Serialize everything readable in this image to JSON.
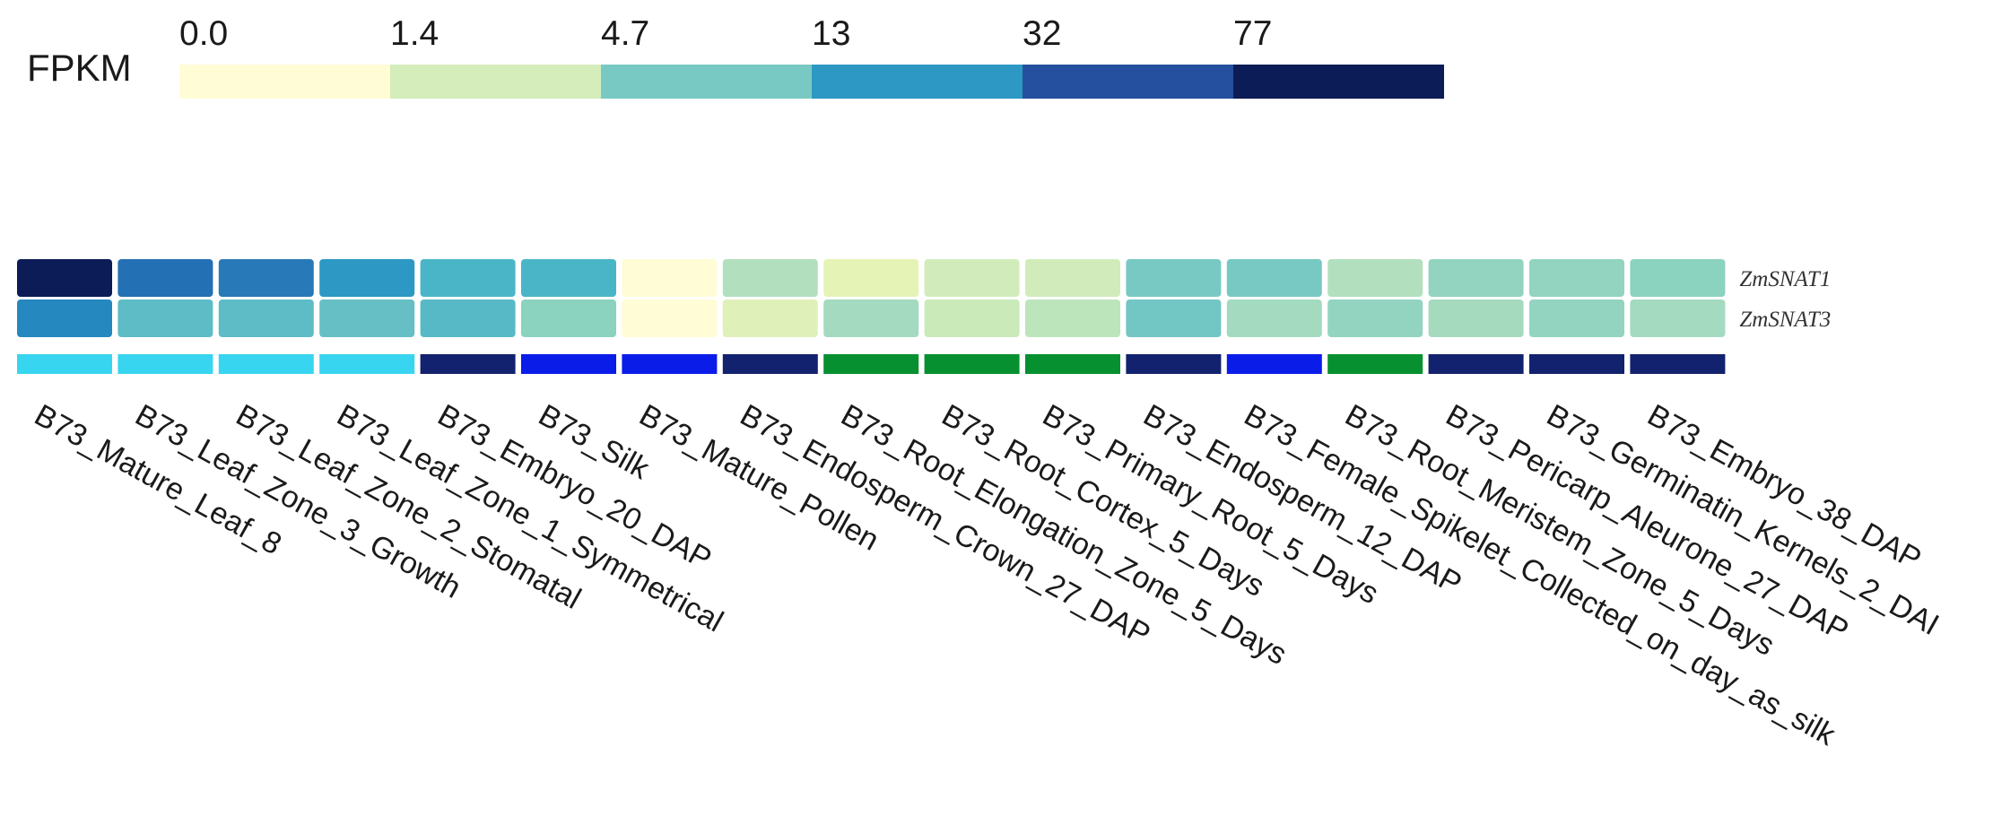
{
  "chart_data": {
    "type": "heatmap",
    "title": "",
    "legend": {
      "title": "FPKM",
      "breaks": [
        "0.0",
        "1.4",
        "4.7",
        "13",
        "32",
        "77"
      ],
      "colors": [
        "#fffcd6",
        "#d5ecbb",
        "#78c9c3",
        "#2d98c3",
        "#2550a0",
        "#0c1c56"
      ]
    },
    "genes": [
      "ZmSNAT1",
      "ZmSNAT3"
    ],
    "samples": [
      "B73_Mature_Leaf_8",
      "B73_Leaf_Zone_3_Growth",
      "B73_Leaf_Zone_2_Stomatal",
      "B73_Leaf_Zone_1_Symmetrical",
      "B73_Embryo_20_DAP",
      "B73_Silk",
      "B73_Mature_Pollen",
      "B73_Endosperm_Crown_27_DAP",
      "B73_Root_Elongation_Zone_5_Days",
      "B73_Root_Cortex_5_Days",
      "B73_Primary_Root_5_Days",
      "B73_Endosperm_12_DAP",
      "B73_Female_Spikelet_Collected_on_day_as_silk",
      "B73_Root_Meristem_Zone_5_Days",
      "B73_Pericarp_Aleurone_27_DAP",
      "B73_Germinatin_Kernels_2_DAI",
      "B73_Embryo_38_DAP"
    ],
    "cell_colors": [
      [
        "#0c1c56",
        "#2370b4",
        "#2879b8",
        "#2d98c3",
        "#4ab5c6",
        "#4ab5c6",
        "#fffcd6",
        "#b2e0be",
        "#e5f3b6",
        "#d1ecba",
        "#d1ecba",
        "#78c9c3",
        "#78c9c3",
        "#b2e0be",
        "#92d4c0",
        "#92d4c0",
        "#8bd2bf"
      ],
      [
        "#2588bf",
        "#5dbcc6",
        "#5dbcc6",
        "#66bfc4",
        "#58b9c6",
        "#8bd2bf",
        "#fffcd6",
        "#dff1b8",
        "#a3dac0",
        "#caeaba",
        "#bde5bc",
        "#72c6c4",
        "#a3dac0",
        "#92d4c0",
        "#a5dabf",
        "#92d4c0",
        "#a3dac0"
      ]
    ],
    "annotation_colors": [
      "#38d5f0",
      "#38d5f0",
      "#38d5f0",
      "#38d5f0",
      "#12226e",
      "#0a1ce8",
      "#0a1ce8",
      "#12226e",
      "#07902f",
      "#07902f",
      "#07902f",
      "#12226e",
      "#0a1ce8",
      "#07902f",
      "#12226e",
      "#12226e",
      "#12226e"
    ]
  }
}
